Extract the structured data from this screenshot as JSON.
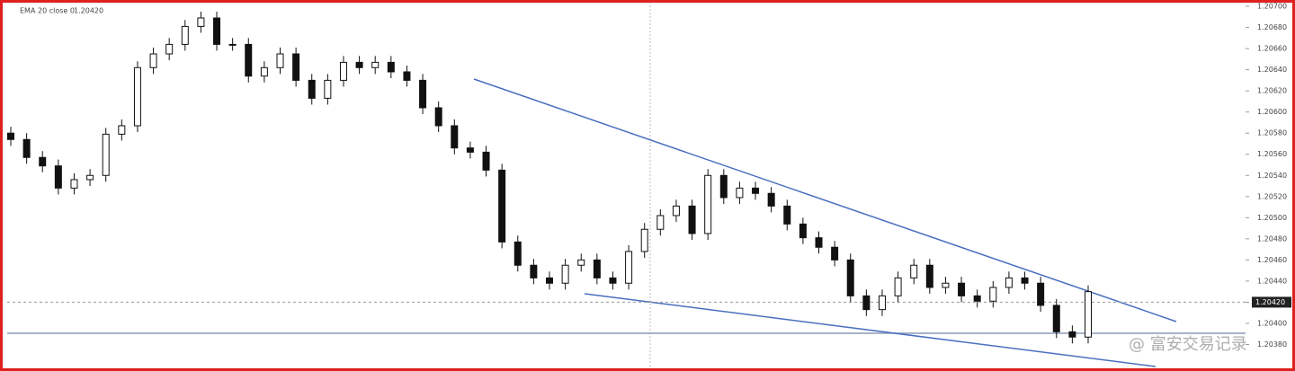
{
  "chart_data": {
    "type": "candlestick",
    "title": "EMA 20 close 0",
    "watermark": "@ 富安交易记录",
    "categories": [
      null,
      null,
      null,
      null,
      null,
      null,
      null,
      null,
      null,
      null,
      null,
      null,
      null,
      null,
      null,
      null,
      null,
      null,
      null,
      null,
      null,
      null,
      null,
      null,
      null,
      null,
      null,
      null,
      null,
      null,
      null,
      null,
      null,
      null,
      null,
      null,
      null,
      null,
      null,
      null,
      null,
      null,
      null,
      null,
      null,
      null,
      null,
      null,
      null,
      null,
      null,
      null,
      null,
      null,
      null,
      null,
      null,
      null,
      null,
      null,
      null,
      null,
      null,
      null,
      null,
      null,
      null,
      null,
      null
    ],
    "open": [
      1.2058,
      1.20574,
      1.20557,
      1.20549,
      1.20528,
      1.20536,
      1.2054,
      1.20579,
      1.20587,
      1.20642,
      1.20655,
      1.20664,
      1.20681,
      1.20689,
      1.20664,
      1.20664,
      1.20634,
      1.20642,
      1.20655,
      1.2063,
      1.20613,
      1.2063,
      1.20647,
      1.20642,
      1.20647,
      1.20638,
      1.2063,
      1.20604,
      1.20587,
      1.20566,
      1.20562,
      1.20545,
      1.20477,
      1.20455,
      1.20443,
      1.20438,
      1.20455,
      1.2046,
      1.20443,
      1.20438,
      1.20468,
      1.20489,
      1.20502,
      1.20511,
      1.20485,
      1.2054,
      1.20519,
      1.20528,
      1.20523,
      1.20511,
      1.20494,
      1.20481,
      1.20472,
      1.2046,
      1.20426,
      1.20413,
      1.20426,
      1.20443,
      1.20455,
      1.20434,
      1.20438,
      1.20426,
      1.20421,
      1.20434,
      1.20443,
      1.20438,
      1.20417,
      1.20392,
      1.20387
    ],
    "close": [
      1.20574,
      1.20557,
      1.20549,
      1.20528,
      1.20536,
      1.2054,
      1.20579,
      1.20587,
      1.20642,
      1.20655,
      1.20664,
      1.20681,
      1.20689,
      1.20664,
      1.20664,
      1.20634,
      1.20642,
      1.20655,
      1.2063,
      1.20613,
      1.2063,
      1.20647,
      1.20642,
      1.20647,
      1.20638,
      1.2063,
      1.20604,
      1.20587,
      1.20566,
      1.20562,
      1.20545,
      1.20477,
      1.20455,
      1.20443,
      1.20438,
      1.20455,
      1.2046,
      1.20443,
      1.20438,
      1.20468,
      1.20489,
      1.20502,
      1.20511,
      1.20485,
      1.2054,
      1.20519,
      1.20528,
      1.20523,
      1.20511,
      1.20494,
      1.20481,
      1.20472,
      1.2046,
      1.20426,
      1.20413,
      1.20426,
      1.20443,
      1.20455,
      1.20434,
      1.20438,
      1.20426,
      1.20421,
      1.20434,
      1.20443,
      1.20438,
      1.20417,
      1.20392,
      1.20387,
      1.2043
    ],
    "high": [
      1.20586,
      1.2058,
      1.20563,
      1.20555,
      1.20542,
      1.20546,
      1.20585,
      1.20593,
      1.20648,
      1.20661,
      1.2067,
      1.20687,
      1.20695,
      1.20695,
      1.2067,
      1.2067,
      1.20648,
      1.20661,
      1.20661,
      1.20636,
      1.20636,
      1.20653,
      1.20653,
      1.20653,
      1.20653,
      1.20644,
      1.20636,
      1.2061,
      1.20593,
      1.20572,
      1.20568,
      1.20551,
      1.20483,
      1.20461,
      1.20449,
      1.20461,
      1.20466,
      1.20466,
      1.20449,
      1.20474,
      1.20495,
      1.20508,
      1.20517,
      1.20517,
      1.20546,
      1.20546,
      1.20534,
      1.20534,
      1.20529,
      1.20517,
      1.205,
      1.20487,
      1.20478,
      1.20466,
      1.20432,
      1.20432,
      1.20449,
      1.20461,
      1.20461,
      1.20444,
      1.20444,
      1.20432,
      1.2044,
      1.20449,
      1.20449,
      1.20444,
      1.20423,
      1.20398,
      1.20436
    ],
    "low": [
      1.20568,
      1.20551,
      1.20543,
      1.20522,
      1.20522,
      1.2053,
      1.20534,
      1.20573,
      1.20581,
      1.20636,
      1.20649,
      1.20658,
      1.20675,
      1.20658,
      1.20658,
      1.20628,
      1.20628,
      1.20636,
      1.20624,
      1.20607,
      1.20607,
      1.20624,
      1.20636,
      1.20636,
      1.20632,
      1.20624,
      1.20598,
      1.20581,
      1.2056,
      1.20556,
      1.20539,
      1.20471,
      1.20449,
      1.20437,
      1.20432,
      1.20432,
      1.20449,
      1.20437,
      1.20432,
      1.20432,
      1.20462,
      1.20483,
      1.20496,
      1.20479,
      1.20479,
      1.20513,
      1.20513,
      1.20517,
      1.20505,
      1.20488,
      1.20475,
      1.20466,
      1.20454,
      1.2042,
      1.20407,
      1.20407,
      1.2042,
      1.20437,
      1.20428,
      1.20428,
      1.2042,
      1.20415,
      1.20415,
      1.20428,
      1.20432,
      1.20411,
      1.20386,
      1.20381,
      1.20381
    ],
    "price_line": {
      "value": 1.2042,
      "label": "1.20420"
    },
    "ylim": [
      1.2036,
      1.20706
    ],
    "yticks": [
      {
        "value": 1.207,
        "label": "1.20700"
      },
      {
        "value": 1.2068,
        "label": "1.20680"
      },
      {
        "value": 1.2066,
        "label": "1.20660"
      },
      {
        "value": 1.2064,
        "label": "1.20640"
      },
      {
        "value": 1.2062,
        "label": "1.20620"
      },
      {
        "value": 1.206,
        "label": "1.20600"
      },
      {
        "value": 1.2058,
        "label": "1.20580"
      },
      {
        "value": 1.2056,
        "label": "1.20560"
      },
      {
        "value": 1.2054,
        "label": "1.20540"
      },
      {
        "value": 1.2052,
        "label": "1.20520"
      },
      {
        "value": 1.205,
        "label": "1.20500"
      },
      {
        "value": 1.2048,
        "label": "1.20480"
      },
      {
        "value": 1.2046,
        "label": "1.20460"
      },
      {
        "value": 1.2044,
        "label": "1.20440"
      },
      {
        "value": 1.2042,
        "label": "1.20420"
      },
      {
        "value": 1.204,
        "label": "1.20400"
      },
      {
        "value": 1.2038,
        "label": "1.20380"
      }
    ],
    "up_color": "#ffffff",
    "down_color": "#111111",
    "grid": false
  }
}
